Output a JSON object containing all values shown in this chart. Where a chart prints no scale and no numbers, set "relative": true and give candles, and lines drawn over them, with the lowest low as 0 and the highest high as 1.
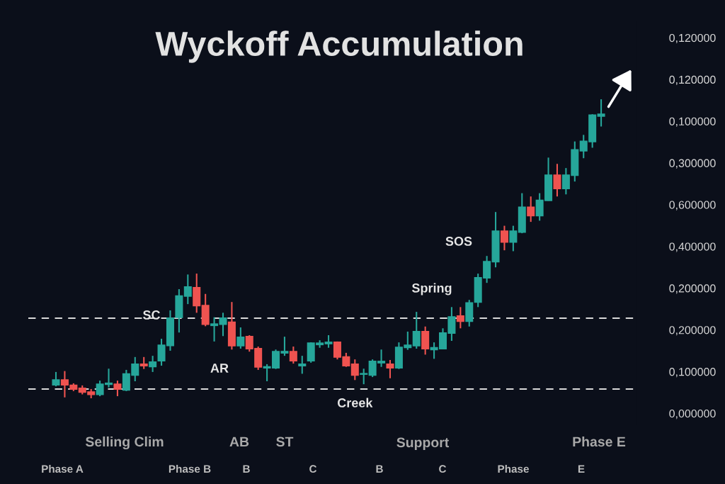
{
  "chart_data": {
    "type": "candlestick",
    "title": "Wyckoff Accumulation",
    "relative": true,
    "categories": [
      null,
      null,
      null,
      null,
      null,
      null,
      null,
      null,
      null,
      null,
      null,
      null,
      null,
      null,
      null,
      null,
      null,
      null,
      null,
      null,
      null,
      null,
      null,
      null,
      null,
      null,
      null,
      null,
      null,
      null,
      null,
      null,
      null,
      null,
      null,
      null,
      null,
      null,
      null,
      null,
      null,
      null,
      null,
      null,
      null,
      null,
      null,
      null,
      null,
      null,
      null,
      null,
      null,
      null,
      null,
      null,
      null,
      null,
      null,
      null,
      null,
      null,
      null
    ],
    "ohlc": [
      [
        0.045,
        0.088,
        0.04,
        0.061
      ],
      [
        0.061,
        0.091,
        0.003,
        0.045
      ],
      [
        0.043,
        0.05,
        0.024,
        0.031
      ],
      [
        0.033,
        0.043,
        0.013,
        0.021
      ],
      [
        0.021,
        0.031,
        0.0,
        0.013
      ],
      [
        0.013,
        0.059,
        0.007,
        0.047
      ],
      [
        0.047,
        0.099,
        0.036,
        0.05
      ],
      [
        0.047,
        0.059,
        0.007,
        0.031
      ],
      [
        0.028,
        0.095,
        0.024,
        0.081
      ],
      [
        0.078,
        0.138,
        0.057,
        0.114
      ],
      [
        0.114,
        0.138,
        0.098,
        0.109
      ],
      [
        0.106,
        0.142,
        0.088,
        0.121
      ],
      [
        0.126,
        0.199,
        0.109,
        0.177
      ],
      [
        0.177,
        0.294,
        0.159,
        0.268
      ],
      [
        0.271,
        0.365,
        0.22,
        0.342
      ],
      [
        0.342,
        0.414,
        0.315,
        0.372
      ],
      [
        0.37,
        0.417,
        0.286,
        0.31
      ],
      [
        0.31,
        0.349,
        0.241,
        0.248
      ],
      [
        0.244,
        0.271,
        0.19,
        0.248
      ],
      [
        0.248,
        0.286,
        0.208,
        0.268
      ],
      [
        0.254,
        0.322,
        0.163,
        0.176
      ],
      [
        0.176,
        0.237,
        0.166,
        0.204
      ],
      [
        0.206,
        0.211,
        0.156,
        0.166
      ],
      [
        0.166,
        0.173,
        0.095,
        0.105
      ],
      [
        0.102,
        0.114,
        0.057,
        0.105
      ],
      [
        0.102,
        0.163,
        0.098,
        0.156
      ],
      [
        0.152,
        0.206,
        0.142,
        0.156
      ],
      [
        0.156,
        0.173,
        0.116,
        0.126
      ],
      [
        0.109,
        0.142,
        0.082,
        0.114
      ],
      [
        0.126,
        0.187,
        0.119,
        0.184
      ],
      [
        0.18,
        0.194,
        0.169,
        0.184
      ],
      [
        0.183,
        0.211,
        0.169,
        0.187
      ],
      [
        0.187,
        0.19,
        0.13,
        0.138
      ],
      [
        0.138,
        0.152,
        0.105,
        0.109
      ],
      [
        0.114,
        0.13,
        0.061,
        0.078
      ],
      [
        0.081,
        0.099,
        0.047,
        0.082
      ],
      [
        0.078,
        0.13,
        0.071,
        0.123
      ],
      [
        0.119,
        0.163,
        0.105,
        0.123
      ],
      [
        0.114,
        0.128,
        0.067,
        0.102
      ],
      [
        0.102,
        0.187,
        0.098,
        0.17
      ],
      [
        0.17,
        0.223,
        0.162,
        0.177
      ],
      [
        0.176,
        0.289,
        0.166,
        0.223
      ],
      [
        0.223,
        0.24,
        0.146,
        0.166
      ],
      [
        0.163,
        0.187,
        0.132,
        0.169
      ],
      [
        0.166,
        0.234,
        0.166,
        0.218
      ],
      [
        0.218,
        0.305,
        0.192,
        0.272
      ],
      [
        0.275,
        0.305,
        0.234,
        0.258
      ],
      [
        0.258,
        0.329,
        0.24,
        0.319
      ],
      [
        0.322,
        0.417,
        0.305,
        0.403
      ],
      [
        0.403,
        0.476,
        0.386,
        0.457
      ],
      [
        0.457,
        0.623,
        0.438,
        0.559
      ],
      [
        0.559,
        0.577,
        0.495,
        0.523
      ],
      [
        0.523,
        0.577,
        0.492,
        0.559
      ],
      [
        0.556,
        0.686,
        0.552,
        0.639
      ],
      [
        0.639,
        0.675,
        0.59,
        0.611
      ],
      [
        0.611,
        0.686,
        0.594,
        0.662
      ],
      [
        0.662,
        0.805,
        0.661,
        0.746
      ],
      [
        0.746,
        0.784,
        0.675,
        0.702
      ],
      [
        0.702,
        0.77,
        0.682,
        0.746
      ],
      [
        0.746,
        0.859,
        0.725,
        0.831
      ],
      [
        0.828,
        0.881,
        0.803,
        0.859
      ],
      [
        0.859,
        0.95,
        0.838,
        0.947
      ],
      [
        0.944,
        1,
        0.909,
        0.95
      ]
    ],
    "colors": [
      "#26a69a",
      "#ef5350",
      "#ef5350",
      "#ef5350",
      "#ef5350",
      "#26a69a",
      "#26a69a",
      "#ef5350",
      "#26a69a",
      "#26a69a",
      "#ef5350",
      "#26a69a",
      "#26a69a",
      "#26a69a",
      "#26a69a",
      "#26a69a",
      "#ef5350",
      "#ef5350",
      "#26a69a",
      "#26a69a",
      "#ef5350",
      "#26a69a",
      "#ef5350",
      "#ef5350",
      "#26a69a",
      "#26a69a",
      "#26a69a",
      "#ef5350",
      "#26a69a",
      "#26a69a",
      "#26a69a",
      "#26a69a",
      "#ef5350",
      "#ef5350",
      "#ef5350",
      "#26a69a",
      "#26a69a",
      "#26a69a",
      "#ef5350",
      "#26a69a",
      "#26a69a",
      "#26a69a",
      "#ef5350",
      "#26a69a",
      "#26a69a",
      "#26a69a",
      "#ef5350",
      "#26a69a",
      "#26a69a",
      "#26a69a",
      "#26a69a",
      "#ef5350",
      "#26a69a",
      "#26a69a",
      "#ef5350",
      "#26a69a",
      "#26a69a",
      "#ef5350",
      "#26a69a",
      "#26a69a",
      "#26a69a",
      "#26a69a",
      "#26a69a"
    ],
    "ref_lines": [
      {
        "axis": "y",
        "value": 0.268,
        "label": null,
        "color": "#d9d9d9",
        "line_style": "dashed"
      },
      {
        "axis": "y",
        "value": 0.031,
        "label": "Creek",
        "color": "#d9d9d9",
        "line_style": "dashed"
      }
    ],
    "annotations": [
      "SC",
      "AR",
      "Spring",
      "SOS",
      "Selling Clim",
      "AB",
      "ST",
      "Support",
      "Phase E",
      "Phase A",
      "Phase B",
      "B",
      "C",
      "B",
      "C",
      "Phase",
      "E",
      "0,120000",
      "0,120000",
      "0,100000",
      "0,300000",
      "0,600000",
      "0,400000",
      "0,200000",
      "0,200000",
      "0,100000",
      "0,000000"
    ]
  }
}
